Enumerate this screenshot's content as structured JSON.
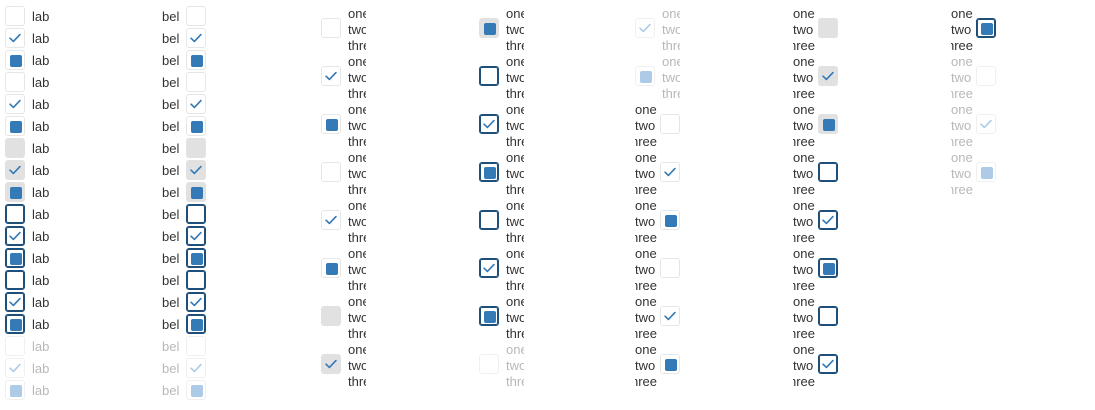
{
  "labels": {
    "lab": "lab",
    "bel": "bel",
    "one": "one",
    "two": "two",
    "three": "three"
  },
  "colors": {
    "accent": "#337ab7",
    "accent_disabled": "#adcbe6",
    "focus_border": "#1e4f7a",
    "hover_bg": "#e1e1e1",
    "border": "#e6e6e6",
    "text": "#333333",
    "text_disabled": "#b8b8b8"
  },
  "icons": {
    "checked": "checkmark-icon",
    "indeterminate": "indeterminate-square-icon"
  },
  "columns": [
    {
      "label_key": "lab",
      "label_position": "right",
      "rows": [
        {
          "state": "unchecked",
          "style": "normal"
        },
        {
          "state": "checked",
          "style": "normal"
        },
        {
          "state": "indeterminate",
          "style": "normal"
        },
        {
          "state": "unchecked",
          "style": "normal"
        },
        {
          "state": "checked",
          "style": "normal"
        },
        {
          "state": "indeterminate",
          "style": "normal"
        },
        {
          "state": "unchecked",
          "style": "hover"
        },
        {
          "state": "checked",
          "style": "hover"
        },
        {
          "state": "indeterminate",
          "style": "hover"
        },
        {
          "state": "unchecked",
          "style": "focus"
        },
        {
          "state": "checked",
          "style": "focus"
        },
        {
          "state": "indeterminate",
          "style": "focus"
        },
        {
          "state": "unchecked",
          "style": "focus"
        },
        {
          "state": "checked",
          "style": "focus"
        },
        {
          "state": "indeterminate",
          "style": "focus"
        },
        {
          "state": "unchecked",
          "style": "disabled"
        },
        {
          "state": "checked",
          "style": "disabled"
        },
        {
          "state": "indeterminate",
          "style": "disabled"
        }
      ]
    },
    {
      "label_key": "bel",
      "label_position": "left",
      "rows": [
        {
          "state": "unchecked",
          "style": "normal"
        },
        {
          "state": "checked",
          "style": "normal"
        },
        {
          "state": "indeterminate",
          "style": "normal"
        },
        {
          "state": "unchecked",
          "style": "normal"
        },
        {
          "state": "checked",
          "style": "normal"
        },
        {
          "state": "indeterminate",
          "style": "normal"
        },
        {
          "state": "unchecked",
          "style": "hover"
        },
        {
          "state": "checked",
          "style": "hover"
        },
        {
          "state": "indeterminate",
          "style": "hover"
        },
        {
          "state": "unchecked",
          "style": "focus"
        },
        {
          "state": "checked",
          "style": "focus"
        },
        {
          "state": "indeterminate",
          "style": "focus"
        },
        {
          "state": "unchecked",
          "style": "focus"
        },
        {
          "state": "checked",
          "style": "focus"
        },
        {
          "state": "indeterminate",
          "style": "focus"
        },
        {
          "state": "unchecked",
          "style": "disabled"
        },
        {
          "state": "checked",
          "style": "disabled"
        },
        {
          "state": "indeterminate",
          "style": "disabled"
        }
      ]
    },
    {
      "label_key": "multiline",
      "label_position": "right",
      "rows": [
        {
          "state": "unchecked",
          "style": "normal"
        },
        {
          "state": "checked",
          "style": "normal"
        },
        {
          "state": "indeterminate",
          "style": "normal"
        },
        {
          "state": "unchecked",
          "style": "normal"
        },
        {
          "state": "checked",
          "style": "normal"
        },
        {
          "state": "indeterminate",
          "style": "normal"
        },
        {
          "state": "unchecked",
          "style": "hover"
        },
        {
          "state": "checked",
          "style": "hover"
        }
      ]
    },
    {
      "label_key": "multiline",
      "label_position": "right",
      "rows": [
        {
          "state": "indeterminate",
          "style": "hover"
        },
        {
          "state": "unchecked",
          "style": "focus"
        },
        {
          "state": "checked",
          "style": "focus"
        },
        {
          "state": "indeterminate",
          "style": "focus"
        },
        {
          "state": "unchecked",
          "style": "focus"
        },
        {
          "state": "checked",
          "style": "focus"
        },
        {
          "state": "indeterminate",
          "style": "focus"
        },
        {
          "state": "unchecked",
          "style": "disabled"
        }
      ]
    },
    {
      "label_key": "multiline",
      "label_position": "mixed",
      "rows": [
        {
          "state": "checked",
          "style": "disabled",
          "side": "right"
        },
        {
          "state": "indeterminate",
          "style": "disabled",
          "side": "right"
        },
        {
          "state": "unchecked",
          "style": "normal",
          "side": "left"
        },
        {
          "state": "checked",
          "style": "normal",
          "side": "left"
        },
        {
          "state": "indeterminate",
          "style": "normal",
          "side": "left"
        },
        {
          "state": "unchecked",
          "style": "normal",
          "side": "left"
        },
        {
          "state": "checked",
          "style": "normal",
          "side": "left"
        },
        {
          "state": "indeterminate",
          "style": "normal",
          "side": "left"
        }
      ]
    },
    {
      "label_key": "multiline",
      "label_position": "left",
      "rows": [
        {
          "state": "unchecked",
          "style": "hover"
        },
        {
          "state": "checked",
          "style": "hover"
        },
        {
          "state": "indeterminate",
          "style": "hover"
        },
        {
          "state": "unchecked",
          "style": "focus"
        },
        {
          "state": "checked",
          "style": "focus"
        },
        {
          "state": "indeterminate",
          "style": "focus"
        },
        {
          "state": "unchecked",
          "style": "focus"
        },
        {
          "state": "checked",
          "style": "focus"
        }
      ]
    },
    {
      "label_key": "multiline",
      "label_position": "left",
      "rows": [
        {
          "state": "indeterminate",
          "style": "focus"
        },
        {
          "state": "unchecked",
          "style": "disabled"
        },
        {
          "state": "checked",
          "style": "disabled"
        },
        {
          "state": "indeterminate",
          "style": "disabled"
        }
      ]
    }
  ]
}
